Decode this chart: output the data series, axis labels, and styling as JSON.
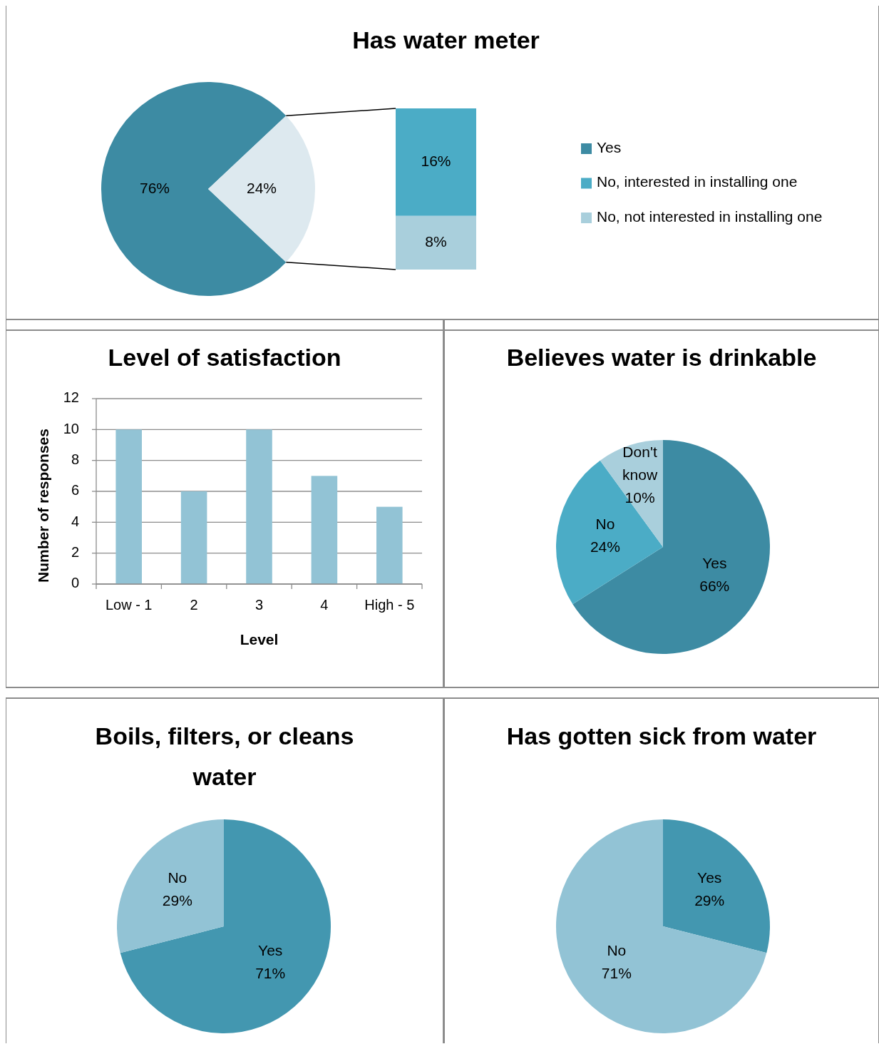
{
  "chart_data": [
    {
      "type": "pie",
      "title": "Has water meter",
      "categories": [
        "Yes",
        null
      ],
      "values": [
        76,
        24
      ],
      "colors": [
        "#3d8ba3",
        "#dde9ef"
      ],
      "value_labels": [
        "76%",
        "24%"
      ],
      "legend": "right"
    },
    {
      "type": "bar",
      "stacked": true,
      "categories": [
        null
      ],
      "legend": "right",
      "series": [
        {
          "name": "No, not interested in installing one",
          "color": "#a9cfdc",
          "values": [
            8
          ],
          "value_labels": [
            "8%"
          ]
        },
        {
          "name": "No, interested in installing one",
          "color": "#4bacc6",
          "values": [
            16
          ],
          "value_labels": [
            "16%"
          ]
        }
      ]
    },
    {
      "type": "bar",
      "title": "Level of satisfaction",
      "xlabel": "Level",
      "ylabel": "Number of responses",
      "categories": [
        "Low - 1",
        "2",
        "3",
        "4",
        "High - 5"
      ],
      "values": [
        10,
        6,
        10,
        7,
        5
      ],
      "color": "#92c3d5",
      "ylim": [
        0,
        12
      ],
      "yticks": [
        0,
        2,
        4,
        6,
        8,
        10,
        12
      ],
      "grid": "y"
    },
    {
      "type": "pie",
      "title": "Believes water is drinkable",
      "categories": [
        "Yes",
        "No",
        "Don't know"
      ],
      "values": [
        66,
        24,
        10
      ],
      "colors": [
        "#3d8ba3",
        "#4bacc6",
        "#a9cfdc"
      ],
      "value_labels": [
        "66%",
        "24%",
        "10%"
      ]
    },
    {
      "type": "pie",
      "title": "Boils, filters, or cleans water",
      "categories": [
        "Yes",
        "No"
      ],
      "values": [
        71,
        29
      ],
      "colors": [
        "#4397b0",
        "#92c3d5"
      ],
      "value_labels": [
        "71%",
        "29%"
      ]
    },
    {
      "type": "pie",
      "title": "Has gotten sick from water",
      "categories": [
        "Yes",
        "No"
      ],
      "values": [
        29,
        71
      ],
      "colors": [
        "#4397b0",
        "#92c3d5"
      ],
      "value_labels": [
        "29%",
        "71%"
      ]
    }
  ]
}
